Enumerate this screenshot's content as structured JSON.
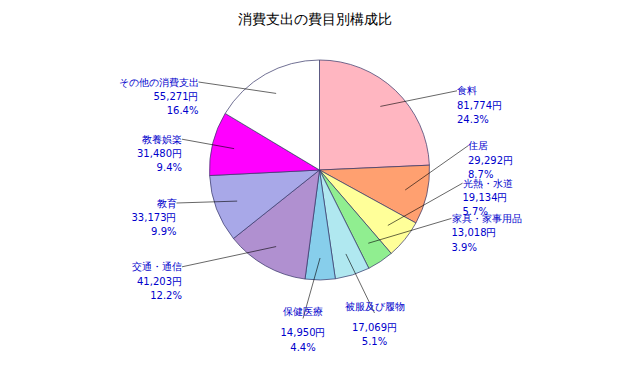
{
  "chart_data": {
    "type": "pie",
    "title": "消費支出の費目別構成比",
    "categories": [
      "食料",
      "住居",
      "光熱・水道",
      "家具・家事用品",
      "被服及び履物",
      "保健医療",
      "交通・通信",
      "教育",
      "教養娯楽",
      "その他の消費支出"
    ],
    "values": [
      24.3,
      8.7,
      5.7,
      3.9,
      5.1,
      4.4,
      12.2,
      9.9,
      9.4,
      16.4
    ],
    "value_labels": [
      "24.3%",
      "8.7%",
      "5.7%",
      "3.9%",
      "5.1%",
      "4.4%",
      "12.2%",
      "9.9%",
      "9.4%",
      "16.4%"
    ],
    "amounts": [
      "81,774円",
      "29,292円",
      "19,134円",
      "13,018円",
      "17,069円",
      "14,950円",
      "41,203円",
      "33,173円",
      "31,480円",
      "55,271円"
    ],
    "colors": [
      "#FFB6C1",
      "#FFA070",
      "#FFFF99",
      "#90EE90",
      "#B0E8F0",
      "#87CEEB",
      "#B090D0",
      "#A8A8E8",
      "#FF00FF",
      "#FFFFFF"
    ]
  }
}
